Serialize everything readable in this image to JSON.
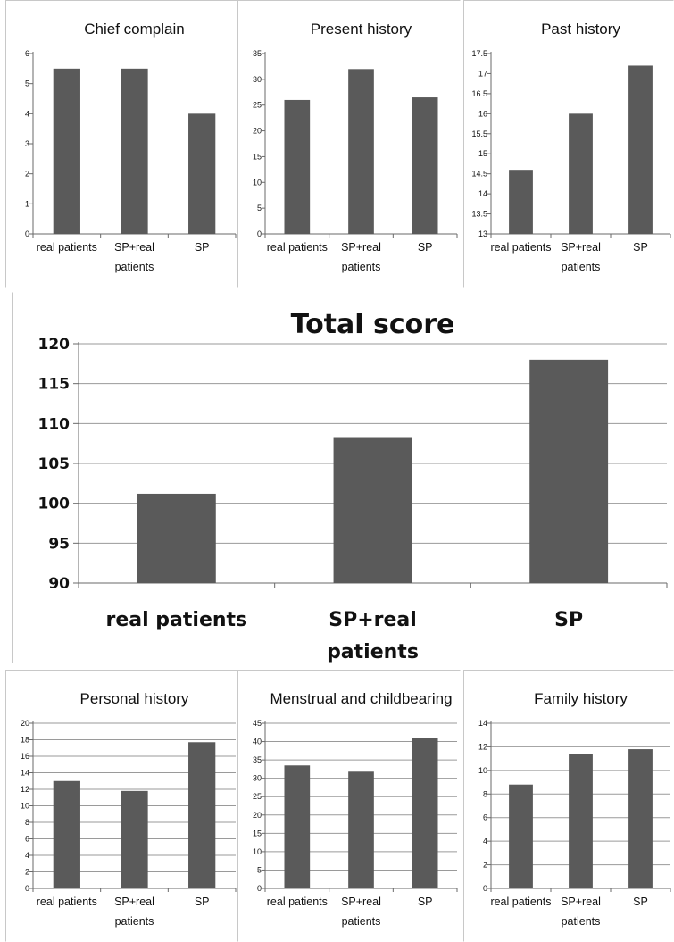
{
  "colors": {
    "bar": "#5a5a5a",
    "grid": "#9a9a9a",
    "axis": "#6a6a6a",
    "border": "#c8c8c8"
  },
  "chart_data": [
    {
      "type": "bar",
      "title": "Chief complain",
      "categories": [
        [
          "real patients"
        ],
        [
          "SP+real",
          "patients"
        ],
        [
          "SP"
        ]
      ],
      "values": [
        5.5,
        5.5,
        4.0
      ],
      "ylim": [
        0,
        6
      ],
      "yticks": [
        "0",
        "1",
        "2",
        "3",
        "4",
        "5",
        "6"
      ],
      "grid": false
    },
    {
      "type": "bar",
      "title": "Present history",
      "categories": [
        [
          "real patients"
        ],
        [
          "SP+real",
          "patients"
        ],
        [
          "SP"
        ]
      ],
      "values": [
        26,
        32,
        26.5
      ],
      "ylim": [
        0,
        35
      ],
      "yticks": [
        "0",
        "5",
        "10",
        "15",
        "20",
        "25",
        "30",
        "35"
      ],
      "grid": false
    },
    {
      "type": "bar",
      "title": "Past history",
      "categories": [
        [
          "real patients"
        ],
        [
          "SP+real",
          "patients"
        ],
        [
          "SP"
        ]
      ],
      "values": [
        14.6,
        16.0,
        17.2
      ],
      "ylim": [
        13,
        17.5
      ],
      "yticks": [
        "13",
        "13.5",
        "14",
        "14.5",
        "15",
        "15.5",
        "16",
        "16.5",
        "17",
        "17.5"
      ],
      "grid": false
    },
    {
      "type": "bar",
      "title": "Total score",
      "categories": [
        [
          "real patients"
        ],
        [
          "SP+real",
          "patients"
        ],
        [
          "SP"
        ]
      ],
      "values": [
        101.2,
        108.3,
        118.0
      ],
      "ylim": [
        90,
        120
      ],
      "yticks": [
        "90",
        "95",
        "100",
        "105",
        "110",
        "115",
        "120"
      ],
      "grid": true
    },
    {
      "type": "bar",
      "title": "Personal history",
      "categories": [
        [
          "real patients"
        ],
        [
          "SP+real",
          "patients"
        ],
        [
          "SP"
        ]
      ],
      "values": [
        13.0,
        11.8,
        17.7
      ],
      "ylim": [
        0,
        20
      ],
      "yticks": [
        "0",
        "2",
        "4",
        "6",
        "8",
        "10",
        "12",
        "14",
        "16",
        "18",
        "20"
      ],
      "grid": true
    },
    {
      "type": "bar",
      "title": "Menstrual and childbearing",
      "categories": [
        [
          "real patients"
        ],
        [
          "SP+real",
          "patients"
        ],
        [
          "SP"
        ]
      ],
      "values": [
        33.5,
        31.8,
        41.0
      ],
      "ylim": [
        0,
        45
      ],
      "yticks": [
        "0",
        "5",
        "10",
        "15",
        "20",
        "25",
        "30",
        "35",
        "40",
        "45"
      ],
      "grid": true
    },
    {
      "type": "bar",
      "title": "Family history",
      "categories": [
        [
          "real patients"
        ],
        [
          "SP+real",
          "patients"
        ],
        [
          "SP"
        ]
      ],
      "values": [
        8.8,
        11.4,
        11.8
      ],
      "ylim": [
        0,
        14
      ],
      "yticks": [
        "0",
        "2",
        "4",
        "6",
        "8",
        "10",
        "12",
        "14"
      ],
      "grid": true
    }
  ]
}
